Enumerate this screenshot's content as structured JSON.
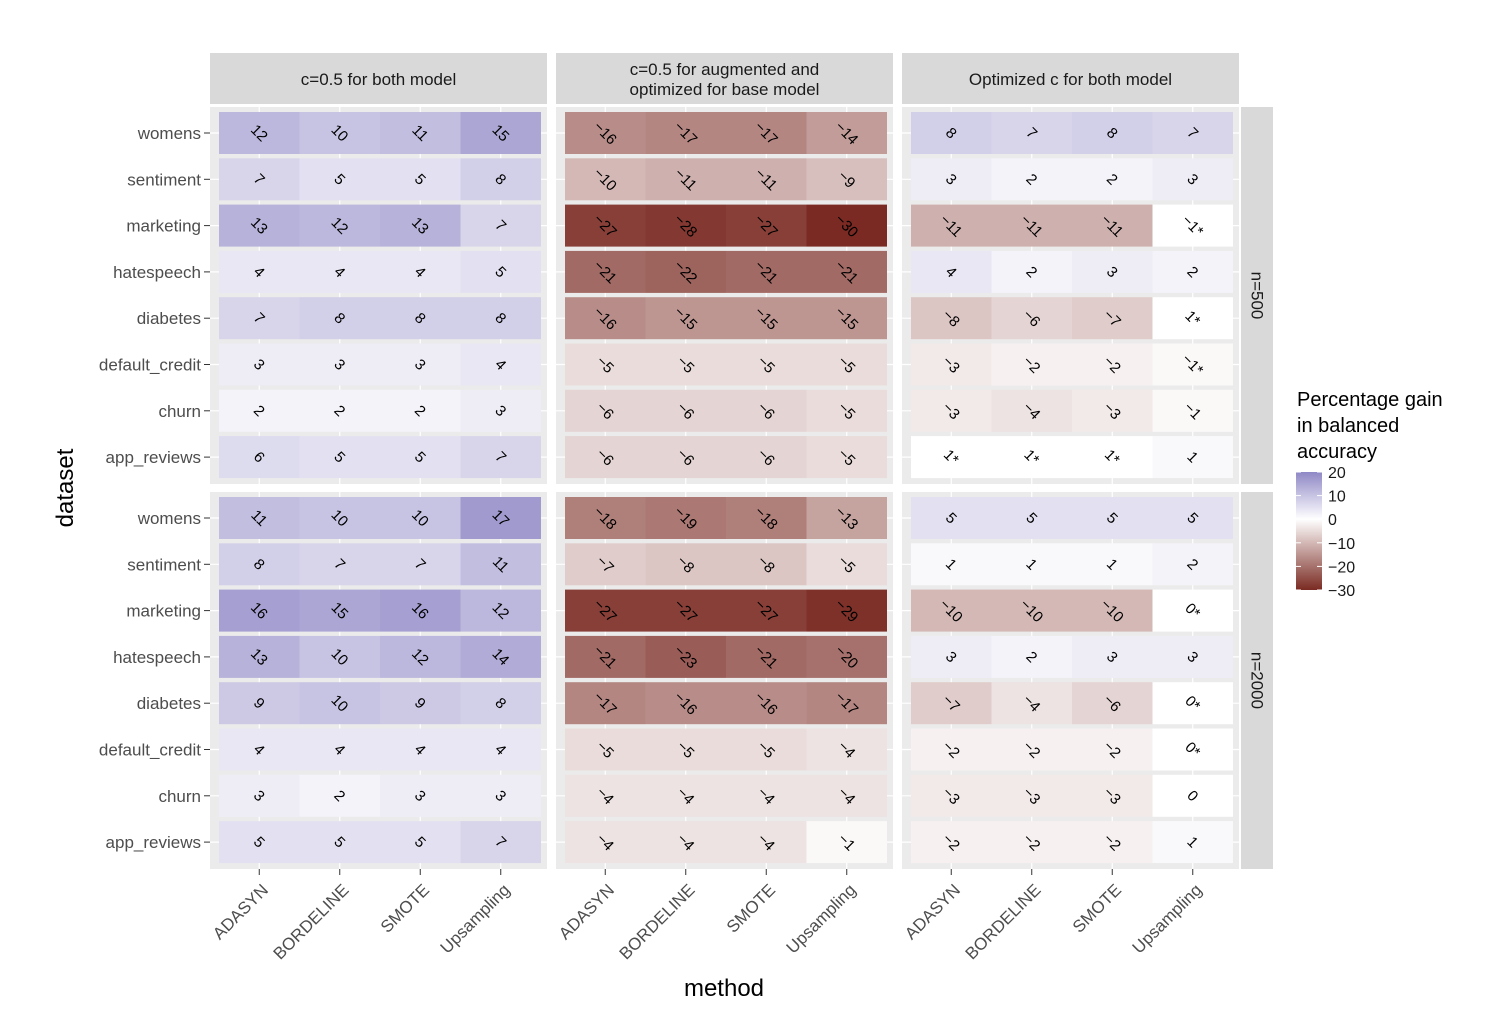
{
  "chart_data": {
    "type": "heatmap",
    "xlabel": "method",
    "ylabel": "dataset",
    "methods": [
      "ADASYN",
      "BORDELINE",
      "SMOTE",
      "Upsampling"
    ],
    "datasets": [
      "womens",
      "sentiment",
      "marketing",
      "hatespeech",
      "diabetes",
      "default_credit",
      "churn",
      "app_reviews"
    ],
    "column_facets": [
      {
        "label": "c=0.5 for both model"
      },
      {
        "label_lines": [
          "c=0.5 for augmented and",
          "optimized for base model"
        ]
      },
      {
        "label": "Optimized c for both model"
      }
    ],
    "row_facets": [
      "n=500",
      "n=2000"
    ],
    "legend": {
      "title_lines": [
        "Percentage gain",
        " in balanced",
        " accuracy"
      ],
      "ticks": [
        20,
        10,
        0,
        -10,
        -20,
        -30
      ],
      "range": [
        -30,
        20
      ],
      "low_color": "#7a2a22",
      "mid_color": "#ffffff",
      "high_color": "#8f88c6"
    },
    "panels": [
      {
        "row": 0,
        "col": 0,
        "values": [
          [
            12,
            10,
            11,
            15
          ],
          [
            7,
            5,
            5,
            8
          ],
          [
            13,
            12,
            13,
            7
          ],
          [
            4,
            4,
            4,
            5
          ],
          [
            7,
            8,
            8,
            8
          ],
          [
            3,
            3,
            3,
            4
          ],
          [
            2,
            2,
            2,
            3
          ],
          [
            6,
            5,
            5,
            7
          ]
        ],
        "labels": [
          [
            "12",
            "10",
            "11",
            "15"
          ],
          [
            "7",
            "5",
            "5",
            "8"
          ],
          [
            "13",
            "12",
            "13",
            "7"
          ],
          [
            "4",
            "4",
            "4",
            "5"
          ],
          [
            "7",
            "8",
            "8",
            "8"
          ],
          [
            "3",
            "3",
            "3",
            "4"
          ],
          [
            "2",
            "2",
            "2",
            "3"
          ],
          [
            "6",
            "5",
            "5",
            "7"
          ]
        ]
      },
      {
        "row": 0,
        "col": 1,
        "values": [
          [
            -16,
            -17,
            -17,
            -14
          ],
          [
            -10,
            -11,
            -11,
            -9
          ],
          [
            -27,
            -28,
            -27,
            -30
          ],
          [
            -21,
            -22,
            -21,
            -21
          ],
          [
            -16,
            -15,
            -15,
            -15
          ],
          [
            -5,
            -5,
            -5,
            -5
          ],
          [
            -6,
            -6,
            -6,
            -5
          ],
          [
            -6,
            -6,
            -6,
            -5
          ]
        ],
        "labels": [
          [
            "−16",
            "−17",
            "−17",
            "−14"
          ],
          [
            "−10",
            "−11",
            "−11",
            "−9"
          ],
          [
            "−27",
            "−28",
            "−27",
            "−30"
          ],
          [
            "−21",
            "−22",
            "−21",
            "−21"
          ],
          [
            "−16",
            "−15",
            "−15",
            "−15"
          ],
          [
            "−5",
            "−5",
            "−5",
            "−5"
          ],
          [
            "−6",
            "−6",
            "−6",
            "−5"
          ],
          [
            "−6",
            "−6",
            "−6",
            "−5"
          ]
        ]
      },
      {
        "row": 0,
        "col": 2,
        "values": [
          [
            8,
            7,
            8,
            7
          ],
          [
            3,
            2,
            2,
            3
          ],
          [
            -11,
            -11,
            -11,
            -1
          ],
          [
            4,
            2,
            3,
            2
          ],
          [
            -8,
            -6,
            -7,
            1
          ],
          [
            -3,
            -2,
            -2,
            -1
          ],
          [
            -3,
            -4,
            -3,
            -1
          ],
          [
            1,
            1,
            1,
            1
          ]
        ],
        "labels": [
          [
            "8",
            "7",
            "8",
            "7"
          ],
          [
            "3",
            "2",
            "2",
            "3"
          ],
          [
            "−11",
            "−11",
            "−11",
            "−1*"
          ],
          [
            "4",
            "2",
            "3",
            "2"
          ],
          [
            "−8",
            "−6",
            "−7",
            "1*"
          ],
          [
            "−3",
            "−2",
            "−2",
            "−1*"
          ],
          [
            "−3",
            "−4",
            "−3",
            "−1"
          ],
          [
            "1*",
            "1*",
            "1*",
            "1"
          ]
        ],
        "blank_cells": [
          [
            2,
            3
          ],
          [
            4,
            3
          ],
          [
            7,
            0
          ],
          [
            7,
            1
          ],
          [
            7,
            2
          ]
        ]
      },
      {
        "row": 1,
        "col": 0,
        "values": [
          [
            11,
            10,
            10,
            17
          ],
          [
            8,
            7,
            7,
            11
          ],
          [
            16,
            15,
            16,
            12
          ],
          [
            13,
            10,
            12,
            14
          ],
          [
            9,
            10,
            9,
            8
          ],
          [
            4,
            4,
            4,
            4
          ],
          [
            3,
            2,
            3,
            3
          ],
          [
            5,
            5,
            5,
            7
          ]
        ],
        "labels": [
          [
            "11",
            "10",
            "10",
            "17"
          ],
          [
            "8",
            "7",
            "7",
            "11"
          ],
          [
            "16",
            "15",
            "16",
            "12"
          ],
          [
            "13",
            "10",
            "12",
            "14"
          ],
          [
            "9",
            "10",
            "9",
            "8"
          ],
          [
            "4",
            "4",
            "4",
            "4"
          ],
          [
            "3",
            "2",
            "3",
            "3"
          ],
          [
            "5",
            "5",
            "5",
            "7"
          ]
        ]
      },
      {
        "row": 1,
        "col": 1,
        "values": [
          [
            -18,
            -19,
            -18,
            -13
          ],
          [
            -7,
            -8,
            -8,
            -5
          ],
          [
            -27,
            -27,
            -27,
            -29
          ],
          [
            -21,
            -23,
            -21,
            -20
          ],
          [
            -17,
            -16,
            -16,
            -17
          ],
          [
            -5,
            -5,
            -5,
            -4
          ],
          [
            -4,
            -4,
            -4,
            -4
          ],
          [
            -4,
            -4,
            -4,
            -1
          ]
        ],
        "labels": [
          [
            "−18",
            "−19",
            "−18",
            "−13"
          ],
          [
            "−7",
            "−8",
            "−8",
            "−5"
          ],
          [
            "−27",
            "−27",
            "−27",
            "−29"
          ],
          [
            "−21",
            "−23",
            "−21",
            "−20"
          ],
          [
            "−17",
            "−16",
            "−16",
            "−17"
          ],
          [
            "−5",
            "−5",
            "−5",
            "−4"
          ],
          [
            "−4",
            "−4",
            "−4",
            "−4"
          ],
          [
            "−4",
            "−4",
            "−4",
            "−1"
          ]
        ]
      },
      {
        "row": 1,
        "col": 2,
        "values": [
          [
            5,
            5,
            5,
            5
          ],
          [
            1,
            1,
            1,
            2
          ],
          [
            -10,
            -10,
            -10,
            0
          ],
          [
            3,
            2,
            3,
            3
          ],
          [
            -7,
            -4,
            -6,
            0
          ],
          [
            -2,
            -2,
            -2,
            0
          ],
          [
            -3,
            -3,
            -3,
            0
          ],
          [
            -2,
            -2,
            -2,
            1
          ]
        ],
        "labels": [
          [
            "5",
            "5",
            "5",
            "5"
          ],
          [
            "1",
            "1",
            "1",
            "2"
          ],
          [
            "−10",
            "−10",
            "−10",
            "0*"
          ],
          [
            "3",
            "2",
            "3",
            "3"
          ],
          [
            "−7",
            "−4",
            "−6",
            "0*"
          ],
          [
            "−2",
            "−2",
            "−2",
            "0*"
          ],
          [
            "−3",
            "−3",
            "−3",
            "0"
          ],
          [
            "−2",
            "−2",
            "−2",
            "1"
          ]
        ],
        "blank_cells": [
          [
            2,
            3
          ],
          [
            4,
            3
          ],
          [
            5,
            3
          ]
        ]
      }
    ]
  }
}
